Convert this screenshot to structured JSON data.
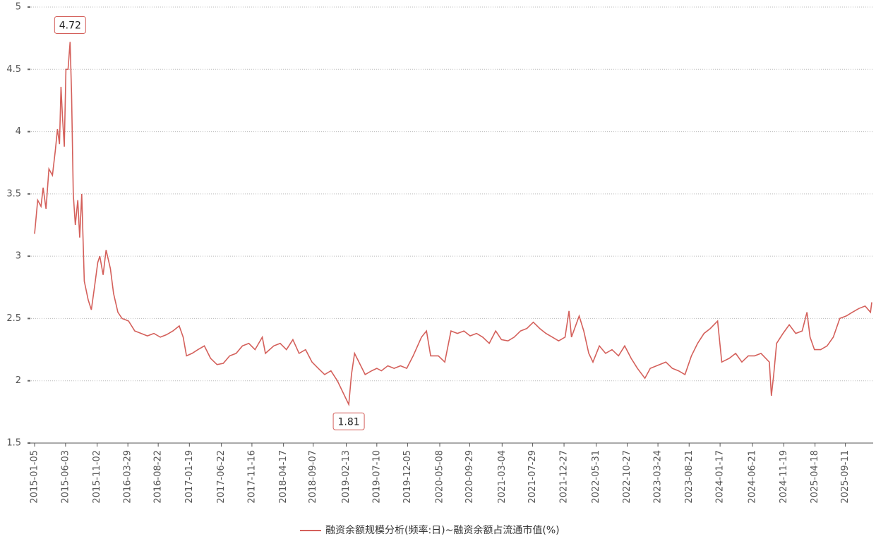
{
  "chart_data": {
    "type": "line",
    "x": [
      "2015-01-05",
      "2015-01-20",
      "2015-02-05",
      "2015-02-15",
      "2015-03-01",
      "2015-03-15",
      "2015-04-01",
      "2015-04-15",
      "2015-04-25",
      "2015-05-05",
      "2015-05-12",
      "2015-05-20",
      "2015-05-28",
      "2015-06-05",
      "2015-06-15",
      "2015-06-25",
      "2015-07-02",
      "2015-07-10",
      "2015-07-20",
      "2015-08-01",
      "2015-08-10",
      "2015-08-20",
      "2015-09-01",
      "2015-09-20",
      "2015-10-05",
      "2015-10-20",
      "2015-11-05",
      "2015-11-15",
      "2015-12-01",
      "2015-12-15",
      "2016-01-05",
      "2016-01-20",
      "2016-02-10",
      "2016-03-01",
      "2016-04-01",
      "2016-05-01",
      "2016-06-01",
      "2016-07-01",
      "2016-08-01",
      "2016-09-01",
      "2016-10-01",
      "2016-11-01",
      "2016-12-01",
      "2016-12-20",
      "2017-01-05",
      "2017-02-01",
      "2017-03-01",
      "2017-04-01",
      "2017-05-01",
      "2017-06-01",
      "2017-07-01",
      "2017-08-01",
      "2017-09-01",
      "2017-10-01",
      "2017-11-01",
      "2017-12-01",
      "2018-01-05",
      "2018-01-20",
      "2018-03-01",
      "2018-04-01",
      "2018-05-01",
      "2018-06-01",
      "2018-07-01",
      "2018-08-01",
      "2018-09-01",
      "2018-10-01",
      "2018-11-01",
      "2018-12-01",
      "2019-01-01",
      "2019-02-25",
      "2019-03-10",
      "2019-03-25",
      "2019-04-15",
      "2019-05-15",
      "2019-06-15",
      "2019-07-10",
      "2019-08-01",
      "2019-09-01",
      "2019-10-01",
      "2019-11-01",
      "2019-12-01",
      "2020-01-01",
      "2020-02-10",
      "2020-03-05",
      "2020-03-25",
      "2020-05-01",
      "2020-06-01",
      "2020-07-01",
      "2020-08-01",
      "2020-09-01",
      "2020-10-01",
      "2020-11-01",
      "2020-12-01",
      "2021-01-01",
      "2021-02-01",
      "2021-03-01",
      "2021-04-01",
      "2021-05-01",
      "2021-06-01",
      "2021-07-01",
      "2021-08-01",
      "2021-09-01",
      "2021-10-01",
      "2021-11-01",
      "2021-12-01",
      "2022-01-01",
      "2022-01-20",
      "2022-02-01",
      "2022-03-10",
      "2022-04-01",
      "2022-04-25",
      "2022-05-15",
      "2022-06-15",
      "2022-07-15",
      "2022-08-15",
      "2022-09-15",
      "2022-10-15",
      "2022-11-15",
      "2022-12-15",
      "2023-01-20",
      "2023-02-15",
      "2023-04-01",
      "2023-05-01",
      "2023-06-01",
      "2023-07-01",
      "2023-08-01",
      "2023-09-01",
      "2023-10-01",
      "2023-11-01",
      "2023-12-01",
      "2024-01-05",
      "2024-01-25",
      "2024-03-01",
      "2024-04-01",
      "2024-05-01",
      "2024-06-01",
      "2024-07-01",
      "2024-08-01",
      "2024-09-10",
      "2024-09-20",
      "2024-10-01",
      "2024-10-15",
      "2024-11-15",
      "2024-12-15",
      "2025-01-15",
      "2025-02-15",
      "2025-03-10",
      "2025-03-25",
      "2025-04-15",
      "2025-05-15",
      "2025-06-15",
      "2025-07-15",
      "2025-08-15",
      "2025-09-15",
      "2025-10-15",
      "2025-11-15",
      "2025-12-15",
      "2026-01-10",
      "2026-01-16"
    ],
    "series": [
      {
        "name": "融资余额规模分析(频率:日)~融资余额占流通市值(%)",
        "color": "#d4605b",
        "values": [
          3.18,
          3.45,
          3.4,
          3.55,
          3.38,
          3.7,
          3.65,
          3.85,
          4.02,
          3.9,
          4.36,
          4.1,
          3.88,
          4.5,
          4.5,
          4.72,
          4.3,
          3.5,
          3.25,
          3.45,
          3.15,
          3.5,
          2.8,
          2.65,
          2.57,
          2.75,
          2.95,
          3.0,
          2.85,
          3.05,
          2.9,
          2.7,
          2.55,
          2.5,
          2.48,
          2.4,
          2.38,
          2.36,
          2.38,
          2.35,
          2.37,
          2.4,
          2.44,
          2.35,
          2.2,
          2.22,
          2.25,
          2.28,
          2.18,
          2.13,
          2.14,
          2.2,
          2.22,
          2.28,
          2.3,
          2.25,
          2.35,
          2.22,
          2.28,
          2.3,
          2.25,
          2.33,
          2.22,
          2.25,
          2.15,
          2.1,
          2.05,
          2.08,
          2.0,
          1.81,
          2.05,
          2.22,
          2.15,
          2.05,
          2.08,
          2.1,
          2.08,
          2.12,
          2.1,
          2.12,
          2.1,
          2.2,
          2.35,
          2.4,
          2.2,
          2.2,
          2.15,
          2.4,
          2.38,
          2.4,
          2.36,
          2.38,
          2.35,
          2.3,
          2.4,
          2.33,
          2.32,
          2.35,
          2.4,
          2.42,
          2.47,
          2.42,
          2.38,
          2.35,
          2.32,
          2.35,
          2.56,
          2.35,
          2.52,
          2.4,
          2.22,
          2.15,
          2.28,
          2.22,
          2.25,
          2.2,
          2.28,
          2.18,
          2.1,
          2.02,
          2.1,
          2.13,
          2.15,
          2.1,
          2.08,
          2.05,
          2.2,
          2.3,
          2.38,
          2.42,
          2.48,
          2.15,
          2.18,
          2.22,
          2.15,
          2.2,
          2.2,
          2.22,
          2.15,
          1.88,
          2.05,
          2.3,
          2.38,
          2.45,
          2.38,
          2.4,
          2.55,
          2.35,
          2.25,
          2.25,
          2.28,
          2.35,
          2.5,
          2.52,
          2.55,
          2.58,
          2.6,
          2.55,
          2.63
        ]
      }
    ],
    "xlim": [
      "2015-01-05",
      "2026-01-16"
    ],
    "xticks": [
      "2015-01-05",
      "2015-06-03",
      "2015-11-02",
      "2016-03-29",
      "2016-08-22",
      "2017-01-19",
      "2017-06-22",
      "2017-11-16",
      "2018-04-17",
      "2018-09-07",
      "2019-02-13",
      "2019-07-10",
      "2019-12-05",
      "2020-05-08",
      "2020-09-29",
      "2021-03-04",
      "2021-07-29",
      "2021-12-27",
      "2022-05-31",
      "2022-10-27",
      "2023-03-24",
      "2023-08-21",
      "2024-01-17",
      "2024-06-21",
      "2024-11-19",
      "2025-04-18",
      "2025-09-11"
    ],
    "ylim": [
      1.5,
      5
    ],
    "yticks": [
      1.5,
      2,
      2.5,
      3,
      3.5,
      4,
      4.5,
      5
    ],
    "grid": true
  }
}
